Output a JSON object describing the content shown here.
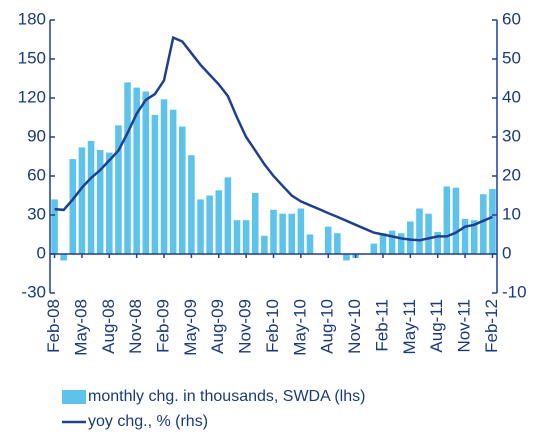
{
  "chart_data": {
    "type": "bar_line",
    "categories": [
      "Feb-08",
      null,
      null,
      "May-08",
      null,
      null,
      "Aug-08",
      null,
      null,
      "Nov-08",
      null,
      null,
      "Feb-09",
      null,
      null,
      "May-09",
      null,
      null,
      "Aug-09",
      null,
      null,
      "Nov-09",
      null,
      null,
      "Feb-10",
      null,
      null,
      "May-10",
      null,
      null,
      "Aug-10",
      null,
      null,
      "Nov-10",
      null,
      null,
      "Feb-11",
      null,
      null,
      "May-11",
      null,
      null,
      "Aug-11",
      null,
      null,
      "Nov-11",
      null,
      null,
      "Feb-12"
    ],
    "series": [
      {
        "name": "monthly chg. in thousands, SWDA (lhs)",
        "color": "#5ec3ea",
        "kind": "bar",
        "values": [
          42,
          -5,
          73,
          82,
          87,
          80,
          78,
          99,
          132,
          128,
          125,
          107,
          119,
          111,
          98,
          76,
          42,
          45,
          49,
          59,
          26,
          26,
          47,
          14,
          34,
          31,
          31,
          35,
          15,
          0,
          21,
          16,
          -5,
          -3,
          0,
          8,
          16,
          18,
          16,
          25,
          35,
          31,
          17,
          52,
          51,
          27,
          26,
          46,
          50
        ]
      },
      {
        "name": "yoy chg., % (rhs)",
        "color": "#1f3f8f",
        "kind": "line",
        "axis": "y2",
        "values": [
          11.5,
          11.3,
          14,
          17,
          19.5,
          21.5,
          24,
          26.5,
          31,
          36,
          39.5,
          41,
          44.5,
          55.5,
          54.5,
          51.5,
          48.5,
          46,
          43.5,
          40.5,
          35,
          30,
          26.5,
          23,
          20,
          17.5,
          15,
          13.5,
          12.5,
          11.5,
          10.5,
          9.5,
          8.5,
          7.5,
          6.5,
          5.5,
          5,
          4.5,
          4,
          3.7,
          3.5,
          4,
          4.5,
          4.5,
          5.5,
          7,
          7.5,
          8.5,
          9.5
        ]
      }
    ],
    "ylim": [
      -30,
      180
    ],
    "yticks": [
      -30,
      0,
      30,
      60,
      90,
      120,
      150,
      180
    ],
    "y2lim": [
      -10,
      60
    ],
    "y2ticks": [
      -10,
      0,
      10,
      20,
      30,
      40,
      50,
      60
    ]
  }
}
